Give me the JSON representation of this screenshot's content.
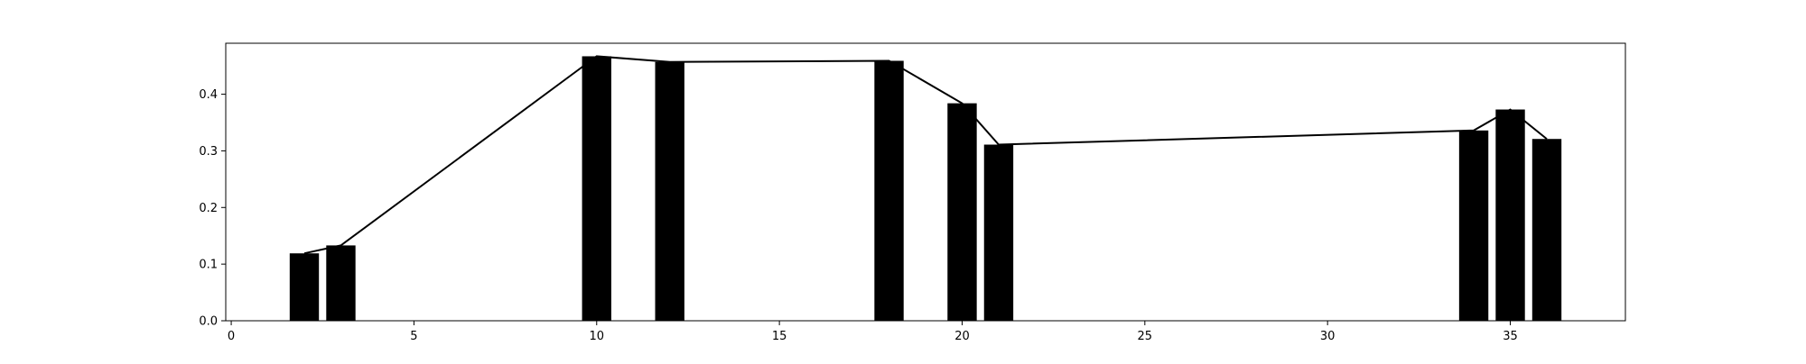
{
  "chart_data": {
    "type": "bar",
    "title": "",
    "xlabel": "",
    "ylabel": "",
    "xlim": [
      -0.15,
      38.15
    ],
    "ylim": [
      0.0,
      0.49
    ],
    "grid": false,
    "bar_width": 0.8,
    "bar_color": "#000000",
    "line_color": "#000000",
    "xticks": [
      0,
      5,
      10,
      15,
      20,
      25,
      30,
      35
    ],
    "xtick_labels": [
      "0",
      "5",
      "10",
      "15",
      "20",
      "25",
      "30",
      "35"
    ],
    "yticks": [
      0.0,
      0.1,
      0.2,
      0.3,
      0.4
    ],
    "ytick_labels": [
      "0.0",
      "0.1",
      "0.2",
      "0.3",
      "0.4"
    ],
    "x": [
      2,
      3,
      10,
      12,
      18,
      20,
      21,
      34,
      35,
      36
    ],
    "values": [
      0.119,
      0.133,
      0.467,
      0.457,
      0.459,
      0.384,
      0.311,
      0.336,
      0.373,
      0.321
    ]
  }
}
